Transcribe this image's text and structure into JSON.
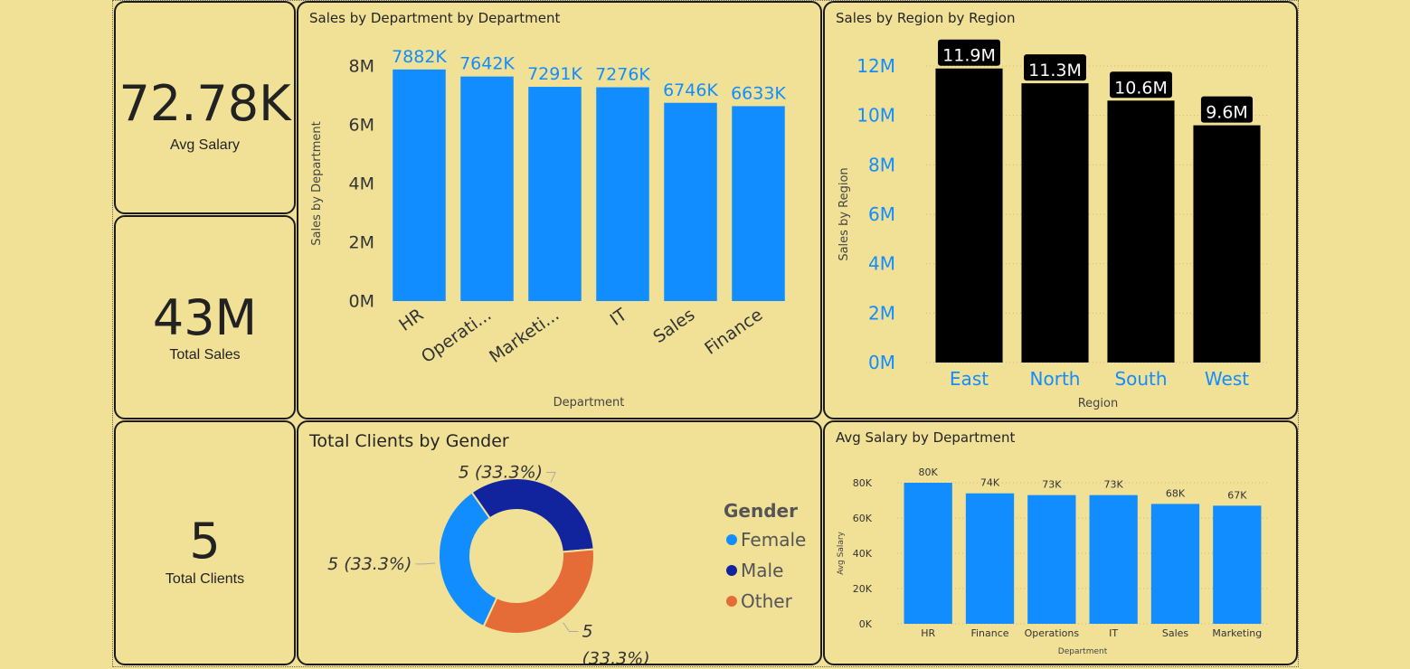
{
  "kpis": [
    {
      "value": "72.78K",
      "label": "Avg Salary"
    },
    {
      "value": "43M",
      "label": "Total Sales"
    },
    {
      "value": "5",
      "label": "Total Clients"
    }
  ],
  "colors": {
    "background": "#f0e197",
    "bar_blue": "#118dff",
    "bar_black": "#000000",
    "label_blue": "#118dff",
    "female": "#118dff",
    "male": "#12239e",
    "other": "#e66c37"
  },
  "chart_data": [
    {
      "id": "dept",
      "type": "bar",
      "title": "Sales by Department by Department",
      "xlabel": "Department",
      "ylabel": "Sales by Department",
      "categories": [
        "HR",
        "Operati...",
        "Marketi...",
        "IT",
        "Sales",
        "Finance"
      ],
      "values": [
        7882,
        7642,
        7291,
        7276,
        6746,
        6633
      ],
      "value_unit": "K",
      "data_labels": [
        "7882K",
        "7642K",
        "7291K",
        "7276K",
        "6746K",
        "6633K"
      ],
      "yticks": [
        "0M",
        "2M",
        "4M",
        "6M",
        "8M"
      ],
      "ylim": [
        0,
        8000
      ]
    },
    {
      "id": "region",
      "type": "bar",
      "title": "Sales by Region by Region",
      "xlabel": "Region",
      "ylabel": "Sales by Region",
      "categories": [
        "East",
        "North",
        "South",
        "West"
      ],
      "values": [
        11.9,
        11.3,
        10.6,
        9.6
      ],
      "value_unit": "M",
      "data_labels": [
        "11.9M",
        "11.3M",
        "10.6M",
        "9.6M"
      ],
      "yticks": [
        "0M",
        "2M",
        "4M",
        "6M",
        "8M",
        "10M",
        "12M"
      ],
      "ylim": [
        0,
        12
      ]
    },
    {
      "id": "gender",
      "type": "pie",
      "title": "Total Clients by Gender",
      "legend_title": "Gender",
      "legend_placement": "right",
      "categories": [
        "Female",
        "Male",
        "Other"
      ],
      "values": [
        5,
        5,
        5
      ],
      "data_labels": [
        "5 (33.3%)",
        "5 (33.3%)",
        "5 (33.3%)"
      ]
    },
    {
      "id": "avgsal",
      "type": "bar",
      "title": "Avg Salary by Department",
      "xlabel": "Department",
      "ylabel": "Avg Salary",
      "categories": [
        "HR",
        "Finance",
        "Operations",
        "IT",
        "Sales",
        "Marketing"
      ],
      "values": [
        80,
        74,
        73,
        73,
        68,
        67
      ],
      "value_unit": "K",
      "data_labels": [
        "80K",
        "74K",
        "73K",
        "73K",
        "68K",
        "67K"
      ],
      "yticks": [
        "0K",
        "20K",
        "40K",
        "60K",
        "80K"
      ],
      "ylim": [
        0,
        80
      ]
    }
  ]
}
